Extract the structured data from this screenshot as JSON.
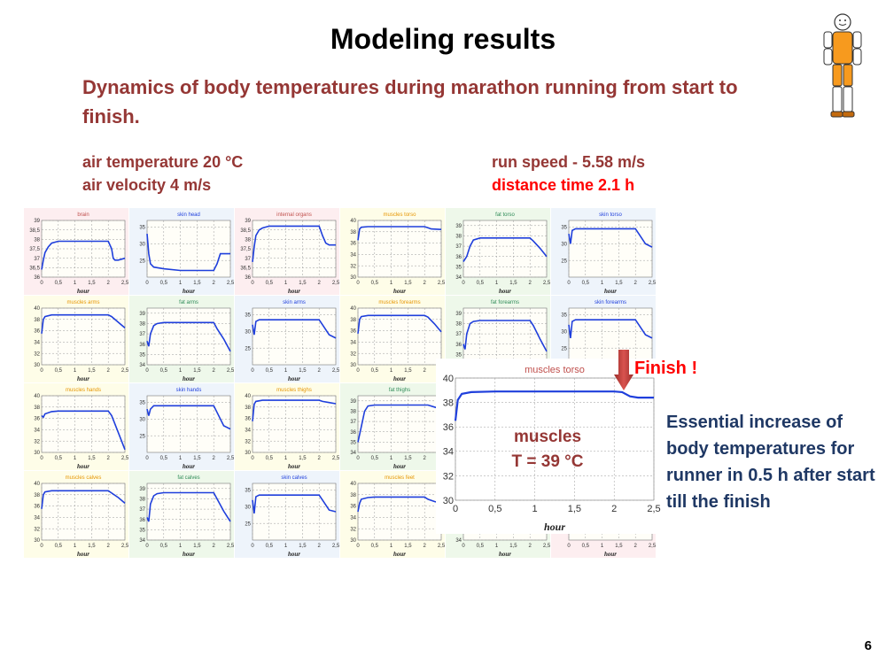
{
  "slide": {
    "title": "Modeling results",
    "subtitle": "Dynamics of body temperatures during marathon running from start to finish.",
    "air_temperature": "air temperature 20 °C",
    "air_velocity": "air velocity 4 m/s",
    "run_speed": "run speed - 5.58 m/s",
    "distance_time": "distance time 2.1 h",
    "finish_label": "Finish !",
    "muscles_label_1": "muscles",
    "muscles_label_2": "T = 39 °C",
    "note": "Essential increase of body temperatures for runner in 0.5 h after start till the finish",
    "page_number": "6"
  },
  "colors": {
    "title_red": "#953735",
    "alert_red": "#ff0000",
    "note_blue": "#1f3864",
    "series": "#1f3fdc",
    "figure_orange": "#f79a1e"
  },
  "icons": [
    "smiley-runner-icon",
    "down-arrow-icon"
  ],
  "chart_data": [
    {
      "type": "line",
      "title": "brain",
      "bg": "#fdeef0",
      "titleColor": "#c0504d",
      "xlabel": "hour",
      "xlim": [
        0,
        2.5
      ],
      "ylim": [
        36,
        39
      ],
      "yticks": [
        "36",
        "36,5",
        "37",
        "37,5",
        "38",
        "38,5",
        "39"
      ],
      "x": [
        0,
        0.05,
        0.1,
        0.2,
        0.3,
        0.5,
        1.0,
        1.5,
        2.0,
        2.1,
        2.15,
        2.2,
        2.3,
        2.5
      ],
      "y": [
        36.4,
        36.9,
        37.3,
        37.6,
        37.8,
        37.9,
        37.9,
        37.9,
        37.9,
        37.5,
        37.0,
        36.9,
        36.9,
        37.0
      ]
    },
    {
      "type": "line",
      "title": "skin head",
      "bg": "#eef4fb",
      "titleColor": "#1f3fdc",
      "xlabel": "hour",
      "xlim": [
        0,
        2.5
      ],
      "ylim": [
        20,
        37
      ],
      "yticks": [
        "25",
        "30",
        "35"
      ],
      "x": [
        0,
        0.05,
        0.1,
        0.2,
        0.5,
        1.0,
        1.5,
        2.0,
        2.1,
        2.2,
        2.5
      ],
      "y": [
        33,
        27,
        24,
        23,
        22.5,
        22,
        22,
        22,
        24,
        27,
        27
      ]
    },
    {
      "type": "line",
      "title": "internal organs",
      "bg": "#fdeef0",
      "titleColor": "#c0504d",
      "xlabel": "hour",
      "xlim": [
        0,
        2.5
      ],
      "ylim": [
        36,
        39
      ],
      "yticks": [
        "36",
        "36,5",
        "37",
        "37,5",
        "38",
        "38,5",
        "39"
      ],
      "x": [
        0,
        0.05,
        0.1,
        0.2,
        0.3,
        0.5,
        1.0,
        1.5,
        2.0,
        2.1,
        2.2,
        2.3,
        2.5
      ],
      "y": [
        36.8,
        37.6,
        38.2,
        38.5,
        38.6,
        38.7,
        38.7,
        38.7,
        38.7,
        38.2,
        37.8,
        37.7,
        37.7
      ]
    },
    {
      "type": "line",
      "title": "muscles torso",
      "bg": "#fefde8",
      "titleColor": "#e69500",
      "xlabel": "hour",
      "xlim": [
        0,
        2.5
      ],
      "ylim": [
        30,
        40
      ],
      "yticks": [
        "30",
        "32",
        "34",
        "36",
        "38",
        "40"
      ],
      "x": [
        0,
        0.05,
        0.1,
        0.3,
        0.5,
        1.0,
        1.5,
        2.0,
        2.1,
        2.2,
        2.5
      ],
      "y": [
        36.5,
        38.5,
        38.8,
        38.9,
        38.9,
        38.9,
        38.9,
        38.9,
        38.7,
        38.5,
        38.4
      ]
    },
    {
      "type": "line",
      "title": "fat torso",
      "bg": "#eef8ea",
      "titleColor": "#2e8b57",
      "xlabel": "hour",
      "xlim": [
        0,
        2.5
      ],
      "ylim": [
        34,
        39.5
      ],
      "yticks": [
        "34",
        "35",
        "36",
        "37",
        "38",
        "39"
      ],
      "x": [
        0,
        0.1,
        0.2,
        0.3,
        0.5,
        1.0,
        1.5,
        2.0,
        2.1,
        2.3,
        2.5
      ],
      "y": [
        35.5,
        36.0,
        37.0,
        37.6,
        37.8,
        37.8,
        37.8,
        37.8,
        37.5,
        36.8,
        36.0
      ]
    },
    {
      "type": "line",
      "title": "skin torso",
      "bg": "#eef4fb",
      "titleColor": "#1f3fdc",
      "xlabel": "hour",
      "xlim": [
        0,
        2.5
      ],
      "ylim": [
        20,
        37
      ],
      "yticks": [
        "25",
        "30",
        "35"
      ],
      "x": [
        0,
        0.05,
        0.1,
        0.2,
        0.5,
        1.0,
        1.5,
        2.0,
        2.1,
        2.3,
        2.5
      ],
      "y": [
        33,
        30,
        34,
        34.5,
        34.5,
        34.5,
        34.5,
        34.5,
        33,
        30,
        29
      ]
    },
    {
      "type": "line",
      "title": "muscles arms",
      "bg": "#fefde8",
      "titleColor": "#e69500",
      "xlabel": "hour",
      "xlim": [
        0,
        2.5
      ],
      "ylim": [
        30,
        40
      ],
      "yticks": [
        "30",
        "32",
        "34",
        "36",
        "38",
        "40"
      ],
      "x": [
        0,
        0.05,
        0.1,
        0.3,
        0.5,
        1.0,
        1.5,
        2.0,
        2.1,
        2.3,
        2.5
      ],
      "y": [
        35.5,
        38.0,
        38.5,
        38.8,
        38.8,
        38.8,
        38.8,
        38.8,
        38.5,
        37.5,
        36.5
      ]
    },
    {
      "type": "line",
      "title": "fat arms",
      "bg": "#eef8ea",
      "titleColor": "#2e8b57",
      "xlabel": "hour",
      "xlim": [
        0,
        2.5
      ],
      "ylim": [
        34,
        39.5
      ],
      "yticks": [
        "34",
        "35",
        "36",
        "37",
        "38",
        "39"
      ],
      "x": [
        0,
        0.05,
        0.1,
        0.2,
        0.3,
        0.5,
        1.0,
        1.5,
        2.0,
        2.1,
        2.3,
        2.5
      ],
      "y": [
        36.3,
        35.8,
        37.0,
        37.8,
        38.0,
        38.1,
        38.1,
        38.1,
        38.1,
        37.5,
        36.5,
        35.3
      ]
    },
    {
      "type": "line",
      "title": "skin arms",
      "bg": "#eef4fb",
      "titleColor": "#1f3fdc",
      "xlabel": "hour",
      "xlim": [
        0,
        2.5
      ],
      "ylim": [
        20,
        37
      ],
      "yticks": [
        "25",
        "30",
        "35"
      ],
      "x": [
        0,
        0.05,
        0.1,
        0.2,
        0.5,
        1.0,
        1.5,
        2.0,
        2.1,
        2.3,
        2.5
      ],
      "y": [
        32,
        29,
        33,
        33.5,
        33.5,
        33.5,
        33.5,
        33.5,
        32,
        29,
        28
      ]
    },
    {
      "type": "line",
      "title": "muscles forearms",
      "bg": "#fefde8",
      "titleColor": "#e69500",
      "xlabel": "hour",
      "xlim": [
        0,
        2.5
      ],
      "ylim": [
        30,
        40
      ],
      "yticks": [
        "30",
        "32",
        "34",
        "36",
        "38",
        "40"
      ],
      "x": [
        0,
        0.05,
        0.1,
        0.3,
        0.5,
        1.0,
        1.5,
        2.0,
        2.1,
        2.3,
        2.5
      ],
      "y": [
        35.5,
        38.0,
        38.5,
        38.7,
        38.7,
        38.7,
        38.7,
        38.7,
        38.4,
        37.2,
        35.8
      ]
    },
    {
      "type": "line",
      "title": "fat forearms",
      "bg": "#eef8ea",
      "titleColor": "#2e8b57",
      "xlabel": "hour",
      "xlim": [
        0,
        2.5
      ],
      "ylim": [
        34,
        39.5
      ],
      "yticks": [
        "34",
        "35",
        "36",
        "37",
        "38",
        "39"
      ],
      "x": [
        0,
        0.05,
        0.1,
        0.2,
        0.3,
        0.5,
        1.0,
        1.5,
        2.0,
        2.1,
        2.3,
        2.5
      ],
      "y": [
        36.0,
        35.5,
        37.0,
        38.0,
        38.2,
        38.3,
        38.3,
        38.3,
        38.3,
        37.8,
        36.5,
        35.3
      ]
    },
    {
      "type": "line",
      "title": "skin forearms",
      "bg": "#eef4fb",
      "titleColor": "#1f3fdc",
      "xlabel": "hour",
      "xlim": [
        0,
        2.5
      ],
      "ylim": [
        20,
        37
      ],
      "yticks": [
        "25",
        "30",
        "35"
      ],
      "x": [
        0,
        0.05,
        0.1,
        0.2,
        0.5,
        1.0,
        1.5,
        2.0,
        2.1,
        2.3,
        2.5
      ],
      "y": [
        32,
        28,
        33,
        33.5,
        33.5,
        33.5,
        33.5,
        33.5,
        32,
        29,
        28
      ]
    },
    {
      "type": "line",
      "title": "muscles hands",
      "bg": "#fefde8",
      "titleColor": "#e69500",
      "xlabel": "hour",
      "xlim": [
        0,
        2.5
      ],
      "ylim": [
        30,
        40
      ],
      "yticks": [
        "30",
        "32",
        "34",
        "36",
        "38",
        "40"
      ],
      "x": [
        0,
        0.05,
        0.1,
        0.3,
        0.5,
        1.0,
        1.5,
        2.0,
        2.1,
        2.3,
        2.5
      ],
      "y": [
        36.5,
        36.2,
        36.8,
        37.2,
        37.3,
        37.3,
        37.3,
        37.3,
        36.5,
        33.5,
        30.5
      ]
    },
    {
      "type": "line",
      "title": "skin hands",
      "bg": "#eef4fb",
      "titleColor": "#1f3fdc",
      "xlabel": "hour",
      "xlim": [
        0,
        2.5
      ],
      "ylim": [
        20,
        37
      ],
      "yticks": [
        "25",
        "30",
        "35"
      ],
      "x": [
        0,
        0.05,
        0.1,
        0.2,
        0.5,
        1.0,
        1.5,
        2.0,
        2.1,
        2.3,
        2.5
      ],
      "y": [
        33,
        31,
        33,
        34,
        34,
        34,
        34,
        34,
        32,
        28,
        27
      ]
    },
    {
      "type": "line",
      "title": "muscles thighs",
      "bg": "#fefde8",
      "titleColor": "#e69500",
      "xlabel": "hour",
      "xlim": [
        0,
        2.5
      ],
      "ylim": [
        30,
        40
      ],
      "yticks": [
        "30",
        "32",
        "34",
        "36",
        "38",
        "40"
      ],
      "x": [
        0,
        0.05,
        0.1,
        0.3,
        0.5,
        1.0,
        1.5,
        2.0,
        2.1,
        2.3,
        2.5
      ],
      "y": [
        35.5,
        38.5,
        39.0,
        39.2,
        39.2,
        39.2,
        39.2,
        39.2,
        39.0,
        38.8,
        38.6
      ]
    },
    {
      "type": "line",
      "title": "fat thighs",
      "bg": "#eef8ea",
      "titleColor": "#2e8b57",
      "xlabel": "hour",
      "xlim": [
        0,
        2.5
      ],
      "ylim": [
        34,
        39.5
      ],
      "yticks": [
        "34",
        "35",
        "36",
        "37",
        "38",
        "39"
      ],
      "x": [
        0,
        0.1,
        0.2,
        0.3,
        0.5,
        1.0,
        1.5,
        2.0,
        2.1,
        2.3,
        2.5
      ],
      "y": [
        35.0,
        36.5,
        38.0,
        38.5,
        38.6,
        38.6,
        38.6,
        38.6,
        38.6,
        38.4,
        38.2
      ]
    },
    null,
    null,
    {
      "type": "line",
      "title": "muscles calves",
      "bg": "#fefde8",
      "titleColor": "#e69500",
      "xlabel": "hour",
      "xlim": [
        0,
        2.5
      ],
      "ylim": [
        30,
        40
      ],
      "yticks": [
        "30",
        "32",
        "34",
        "36",
        "38",
        "40"
      ],
      "x": [
        0,
        0.05,
        0.1,
        0.3,
        0.5,
        1.0,
        1.5,
        2.0,
        2.1,
        2.3,
        2.5
      ],
      "y": [
        35.5,
        38.0,
        38.5,
        38.7,
        38.7,
        38.7,
        38.7,
        38.7,
        38.3,
        37.5,
        36.5
      ]
    },
    {
      "type": "line",
      "title": "fat calves",
      "bg": "#eef8ea",
      "titleColor": "#2e8b57",
      "xlabel": "hour",
      "xlim": [
        0,
        2.5
      ],
      "ylim": [
        34,
        39.5
      ],
      "yticks": [
        "34",
        "35",
        "36",
        "37",
        "38",
        "39"
      ],
      "x": [
        0,
        0.05,
        0.1,
        0.2,
        0.3,
        0.5,
        1.0,
        1.5,
        2.0,
        2.1,
        2.3,
        2.5
      ],
      "y": [
        36.2,
        35.8,
        37.5,
        38.3,
        38.5,
        38.6,
        38.6,
        38.6,
        38.6,
        38.0,
        36.8,
        35.8
      ]
    },
    {
      "type": "line",
      "title": "skin calves",
      "bg": "#eef4fb",
      "titleColor": "#1f3fdc",
      "xlabel": "hour",
      "xlim": [
        0,
        2.5
      ],
      "ylim": [
        20,
        37
      ],
      "yticks": [
        "25",
        "30",
        "35"
      ],
      "x": [
        0,
        0.05,
        0.1,
        0.2,
        0.5,
        1.0,
        1.5,
        2.0,
        2.1,
        2.3,
        2.5
      ],
      "y": [
        32,
        28,
        33,
        33.5,
        33.5,
        33.5,
        33.5,
        33.5,
        32,
        29,
        28.5
      ]
    },
    {
      "type": "line",
      "title": "muscles feet",
      "bg": "#fefde8",
      "titleColor": "#e69500",
      "xlabel": "hour",
      "xlim": [
        0,
        2.5
      ],
      "ylim": [
        30,
        40
      ],
      "yticks": [
        "30",
        "32",
        "34",
        "36",
        "38",
        "40"
      ],
      "x": [
        0,
        0.05,
        0.1,
        0.3,
        0.5,
        1.0,
        1.5,
        2.0,
        2.1,
        2.3,
        2.5
      ],
      "y": [
        35.0,
        36.5,
        37.2,
        37.5,
        37.6,
        37.6,
        37.6,
        37.6,
        37.2,
        36.8,
        36.5
      ]
    },
    {
      "type": "line",
      "title": "",
      "bg": "#eef8ea",
      "titleColor": "#2e8b57",
      "xlabel": "hour",
      "xlim": [
        0,
        2.5
      ],
      "ylim": [
        34,
        39.5
      ],
      "yticks": [
        "34",
        "35",
        "36",
        "37",
        "38",
        "39"
      ],
      "x": [
        0,
        1.0,
        2.5
      ],
      "y": [
        36,
        36,
        36
      ]
    },
    {
      "type": "line",
      "title": "",
      "bg": "#fdeef0",
      "titleColor": "#c0504d",
      "xlabel": "hour",
      "xlim": [
        0,
        2.5
      ],
      "ylim": [
        20,
        37
      ],
      "yticks": [
        "25",
        "30",
        "35"
      ],
      "x": [
        0,
        1.0,
        2.5
      ],
      "y": [
        30,
        30,
        30
      ]
    },
    {
      "type": "line",
      "title": "muscles torso",
      "zoom": true,
      "xlabel": "hour",
      "xlim": [
        0,
        2.5
      ],
      "ylim": [
        30,
        40
      ],
      "xticks": [
        "0",
        "0,5",
        "1",
        "1,5",
        "2",
        "2,5"
      ],
      "yticks": [
        "30",
        "32",
        "34",
        "36",
        "38",
        "40"
      ],
      "x": [
        0,
        0.03,
        0.08,
        0.2,
        0.5,
        1.0,
        1.5,
        2.0,
        2.1,
        2.2,
        2.3,
        2.5
      ],
      "y": [
        36.5,
        38.2,
        38.7,
        38.85,
        38.9,
        38.9,
        38.9,
        38.9,
        38.85,
        38.5,
        38.4,
        38.4
      ]
    }
  ]
}
